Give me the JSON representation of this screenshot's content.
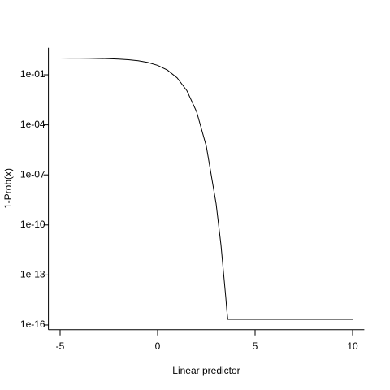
{
  "chart_data": {
    "type": "line",
    "log_y": true,
    "x_label": "Linear predictor",
    "y_label": "1-Prob(x)",
    "color": "#000000",
    "x": [
      -5,
      -4.5,
      -4,
      -3.5,
      -3,
      -2.5,
      -2,
      -1.5,
      -1,
      -0.5,
      0,
      0.5,
      1,
      1.5,
      2,
      2.5,
      3,
      3.25,
      3.5,
      3.55,
      3.6,
      4,
      5,
      6,
      7,
      8,
      9,
      10
    ],
    "values": [
      0.9933,
      0.989,
      0.9818,
      0.9703,
      0.9514,
      0.9212,
      0.8734,
      0.8,
      0.6922,
      0.5452,
      0.3679,
      0.1923,
      0.06599,
      0.01131,
      0.000618,
      5.13e-06,
      1.89e-09,
      6.3e-12,
      4.1e-15,
      7.6e-16,
      2.2e-16,
      2.2e-16,
      2.2e-16,
      2.2e-16,
      2.2e-16,
      2.2e-16,
      2.2e-16,
      2.2e-16
    ],
    "xlim": [
      -5.6,
      10.6
    ],
    "xticks": [
      -5,
      0,
      5,
      10
    ],
    "ylim": [
      5.2e-17,
      4.2
    ],
    "yticks": [
      {
        "value": 0.1,
        "label": "1e-01"
      },
      {
        "value": 0.0001,
        "label": "1e-04"
      },
      {
        "value": 1e-07,
        "label": "1e-07"
      },
      {
        "value": 1e-10,
        "label": "1e-10"
      },
      {
        "value": 1e-13,
        "label": "1e-13"
      },
      {
        "value": 1e-16,
        "label": "1e-16"
      }
    ]
  }
}
